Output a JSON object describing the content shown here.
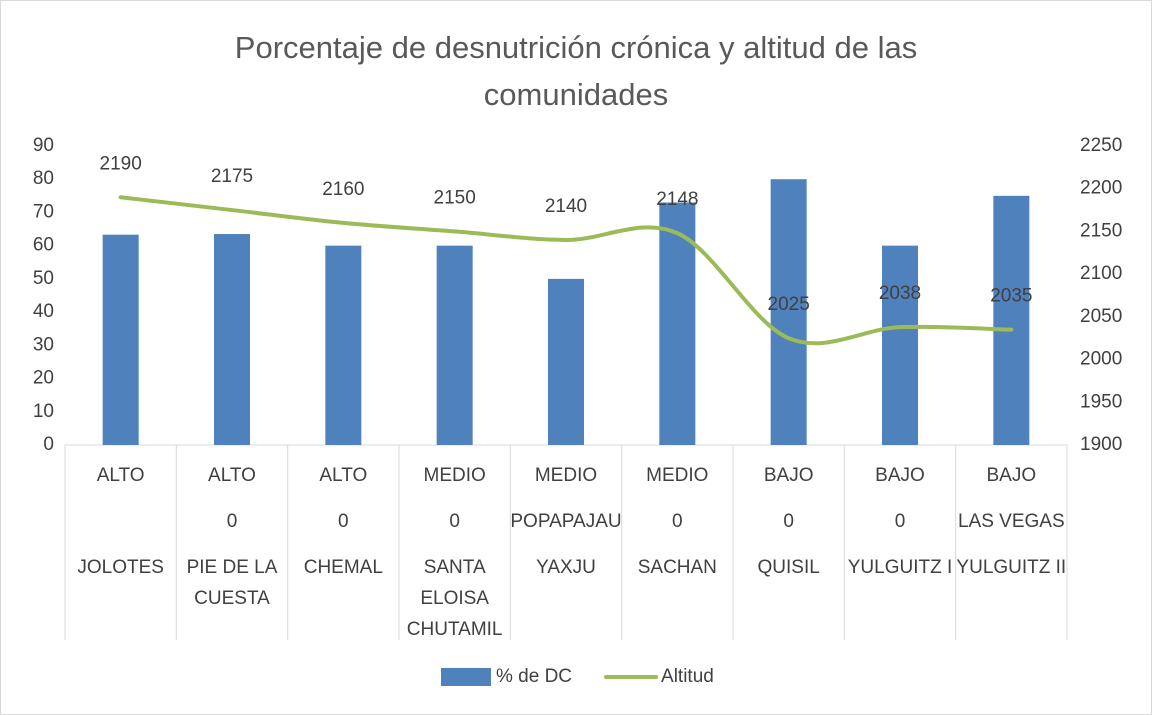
{
  "chart_data": {
    "type": "combo",
    "title": "Porcentaje de desnutrición crónica y altitud de las comunidades",
    "categories": [
      [
        "ALTO",
        null,
        "JOLOTES"
      ],
      [
        "ALTO",
        "0",
        "PIE DE LA CUESTA"
      ],
      [
        "ALTO",
        "0",
        "CHEMAL"
      ],
      [
        "MEDIO",
        "0",
        "SANTA ELOISA CHUTAMIL"
      ],
      [
        "MEDIO",
        "POPAPAJAU",
        "YAXJU"
      ],
      [
        "MEDIO",
        "0",
        "SACHAN"
      ],
      [
        "BAJO",
        "0",
        "QUISIL"
      ],
      [
        "BAJO",
        "0",
        "YULGUITZ I"
      ],
      [
        "BAJO",
        "LAS VEGAS",
        "YULGUITZ II"
      ]
    ],
    "series": [
      {
        "name": "% de DC",
        "type": "bar",
        "axis": "y",
        "color": "#4f81bd",
        "values": [
          63.3,
          63.5,
          60,
          60,
          50,
          73,
          80,
          60,
          75
        ]
      },
      {
        "name": "Altitud",
        "type": "line",
        "axis": "y2",
        "color": "#9bbb59",
        "smooth": true,
        "data_labels": true,
        "values": [
          2190,
          2175,
          2160,
          2150,
          2140,
          2148,
          2025,
          2038,
          2035
        ]
      }
    ],
    "ylim": [
      0,
      90
    ],
    "yticks": [
      0,
      10,
      20,
      30,
      40,
      50,
      60,
      70,
      80,
      90
    ],
    "y2lim": [
      1900,
      2250
    ],
    "y2ticks": [
      1900,
      1950,
      2000,
      2050,
      2100,
      2150,
      2200,
      2250
    ],
    "grid": false,
    "legend": "bottom"
  }
}
